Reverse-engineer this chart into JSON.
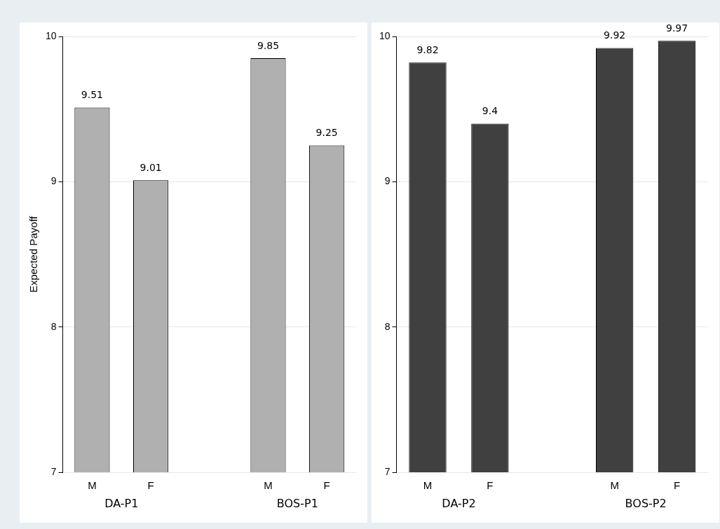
{
  "chart_data": [
    {
      "type": "bar",
      "ylabel": "Expected Payoff",
      "categories": [
        "M",
        "F",
        "M",
        "F"
      ],
      "annotations": [
        "DA-P1",
        "BOS-P1"
      ],
      "series": [
        {
          "color": "#b0b0b0",
          "values": [
            9.51,
            9.01,
            9.85,
            9.25
          ]
        }
      ],
      "ylim": [
        7,
        10
      ],
      "yticks": [
        7,
        8,
        9,
        10
      ],
      "grid": "y",
      "data_labels": true
    },
    {
      "type": "bar",
      "categories": [
        "M",
        "F",
        "M",
        "F"
      ],
      "annotations": [
        "DA-P2",
        "BOS-P2"
      ],
      "series": [
        {
          "color": "#404040",
          "values": [
            9.82,
            9.4,
            9.92,
            9.97
          ]
        }
      ],
      "ylim": [
        7,
        10
      ],
      "yticks": [
        7,
        8,
        9,
        10
      ],
      "grid": "y",
      "data_labels": true
    }
  ]
}
